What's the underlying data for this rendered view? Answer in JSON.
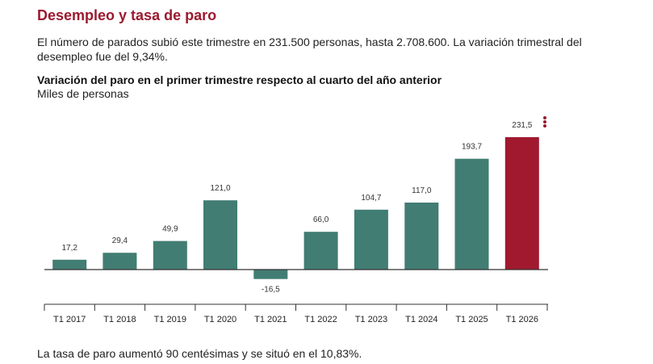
{
  "section_title": "Desempleo y tasa de paro",
  "intro": "El número de parados subió este trimestre en 231.500 personas, hasta 2.708.600. La variación trimestral del desempleo fue del 9,34%.",
  "menu": {
    "icon": "vertical-dots-icon"
  },
  "colors": {
    "title": "#9b1a2f",
    "bar": "#417d73",
    "highlight": "#a0192f",
    "axis": "#333333"
  },
  "footer_note": "La tasa de paro aumentó 90 centésimas y se situó en el 10,83%.",
  "chart_data": {
    "type": "bar",
    "title": "Variación del paro en el primer trimestre respecto al cuarto del año anterior",
    "subtitle": "Miles de personas",
    "xlabel": "",
    "ylabel": "",
    "categories": [
      "T1 2017",
      "T1 2018",
      "T1 2019",
      "T1 2020",
      "T1 2021",
      "T1 2022",
      "T1 2023",
      "T1 2024",
      "T1 2025",
      "T1 2026"
    ],
    "values": [
      17.2,
      29.4,
      49.9,
      121.0,
      -16.5,
      66.0,
      104.7,
      117.0,
      193.7,
      231.5
    ],
    "value_labels": [
      "17,2",
      "29,4",
      "49,9",
      "121,0",
      "-16,5",
      "66,0",
      "104,7",
      "117,0",
      "193,7",
      "231,5"
    ],
    "highlight_category": "T1 2026",
    "ylim": [
      -20,
      240
    ],
    "grid": false,
    "legend": "none"
  }
}
